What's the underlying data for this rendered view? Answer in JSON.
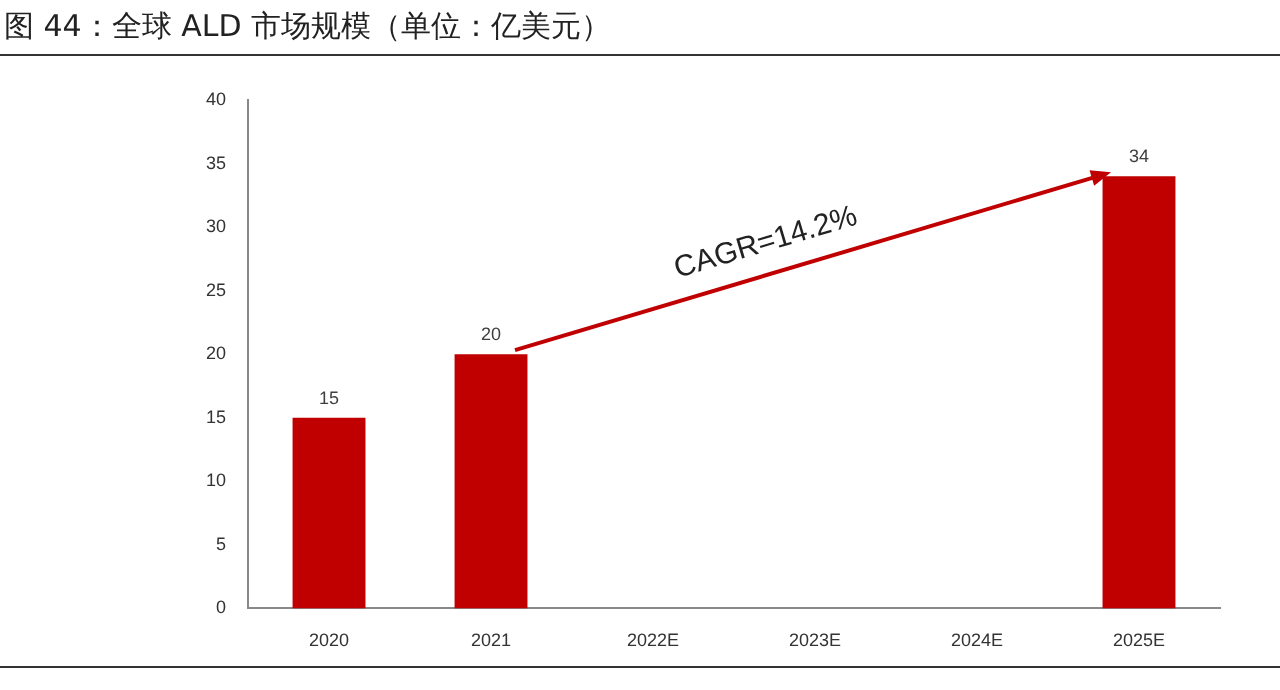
{
  "chart_data": {
    "type": "bar",
    "title": "图 44：全球 ALD 市场规模（单位：亿美元）",
    "categories": [
      "2020",
      "2021",
      "2022E",
      "2023E",
      "2024E",
      "2025E"
    ],
    "values": [
      15,
      20,
      null,
      null,
      null,
      34
    ],
    "color": "#c00000",
    "ylim": [
      0,
      40
    ],
    "yticks": [
      0,
      5,
      10,
      15,
      20,
      25,
      30,
      35,
      40
    ],
    "grid": false,
    "legend": false,
    "data_labels": true,
    "annotations": [
      "CAGR=14.2%"
    ]
  }
}
